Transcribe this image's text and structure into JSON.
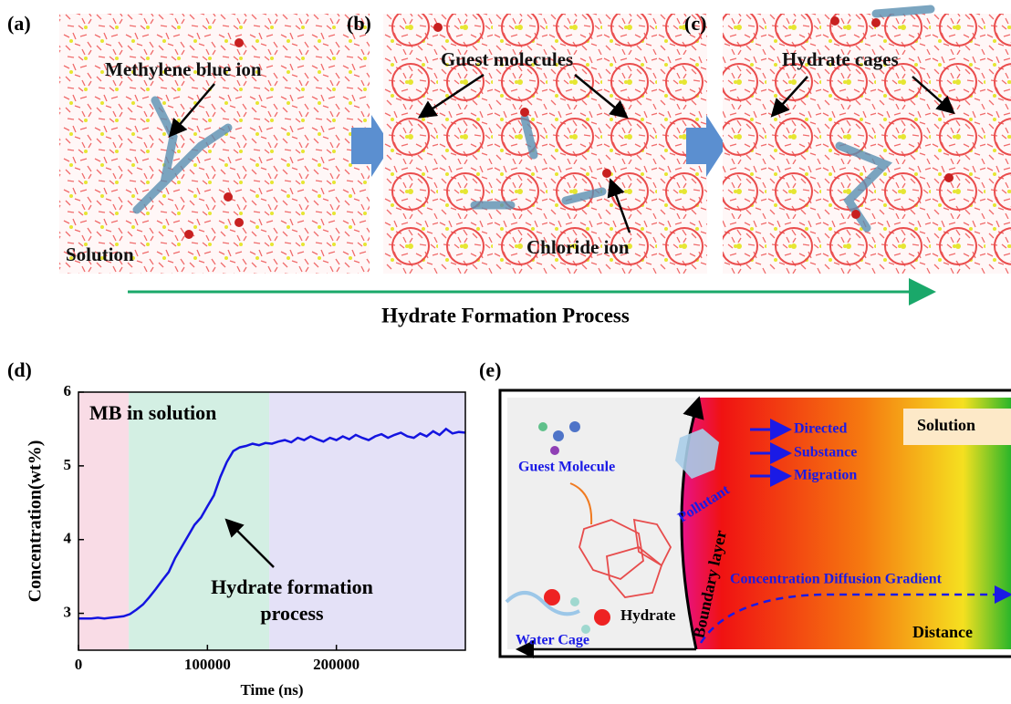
{
  "panels": {
    "a": {
      "label": "(a)",
      "annotations": [
        "Methylene blue ion",
        "Solution"
      ]
    },
    "b": {
      "label": "(b)",
      "annotations": [
        "Guest molecules",
        "Chloride ion"
      ]
    },
    "c": {
      "label": "(c)",
      "annotations": [
        "Hydrate cages"
      ]
    }
  },
  "process_label": "Hydrate Formation Process",
  "chart_data": {
    "type": "line",
    "panel_label": "(d)",
    "x_label": "Time (ns)",
    "y_label": "Concentration(wt%)",
    "annotations": [
      "MB in solution",
      "Hydrate formation",
      "process"
    ],
    "color": "#1414e0",
    "x": [
      0,
      5000,
      10000,
      15000,
      20000,
      25000,
      30000,
      35000,
      40000,
      45000,
      50000,
      55000,
      60000,
      65000,
      70000,
      75000,
      80000,
      85000,
      90000,
      95000,
      100000,
      105000,
      110000,
      115000,
      120000,
      125000,
      130000,
      135000,
      140000,
      145000,
      150000,
      155000,
      160000,
      165000,
      170000,
      175000,
      180000,
      185000,
      190000,
      195000,
      200000,
      205000,
      210000,
      215000,
      220000,
      225000,
      230000,
      235000,
      240000,
      245000,
      250000,
      255000,
      260000,
      265000,
      270000,
      275000,
      280000,
      285000,
      290000,
      295000,
      300000
    ],
    "values": [
      2.93,
      2.93,
      2.93,
      2.94,
      2.93,
      2.94,
      2.95,
      2.96,
      2.99,
      3.05,
      3.12,
      3.22,
      3.33,
      3.45,
      3.56,
      3.75,
      3.9,
      4.05,
      4.2,
      4.3,
      4.45,
      4.6,
      4.85,
      5.05,
      5.2,
      5.25,
      5.27,
      5.3,
      5.28,
      5.31,
      5.3,
      5.33,
      5.35,
      5.32,
      5.38,
      5.35,
      5.4,
      5.36,
      5.33,
      5.38,
      5.35,
      5.4,
      5.36,
      5.42,
      5.38,
      5.35,
      5.4,
      5.43,
      5.38,
      5.42,
      5.45,
      5.4,
      5.38,
      5.44,
      5.4,
      5.47,
      5.42,
      5.5,
      5.44,
      5.46,
      5.45
    ],
    "regions": [
      {
        "start": 0,
        "end": 39000,
        "color": "#f9dce6"
      },
      {
        "start": 39000,
        "end": 148000,
        "color": "#d3efe3"
      },
      {
        "start": 148000,
        "end": 300000,
        "color": "#e4e1f7"
      }
    ],
    "xlim": [
      0,
      300000
    ],
    "xticks": [
      0,
      100000,
      200000
    ],
    "ylim": [
      2.5,
      6
    ],
    "yticks": [
      3,
      4,
      5,
      6
    ]
  },
  "schematic": {
    "label": "(e)",
    "solution": "Solution",
    "directed": "Directed",
    "substance": "Substance",
    "migration": "Migration",
    "guest": "Guest Molecule",
    "pollutant": "Pollutant",
    "hydrate": "Hydrate",
    "boundary": "Boundary layer",
    "gradient": "Concentration Diffusion Gradient",
    "distance": "Distance",
    "water_cage": "Water Cage"
  }
}
